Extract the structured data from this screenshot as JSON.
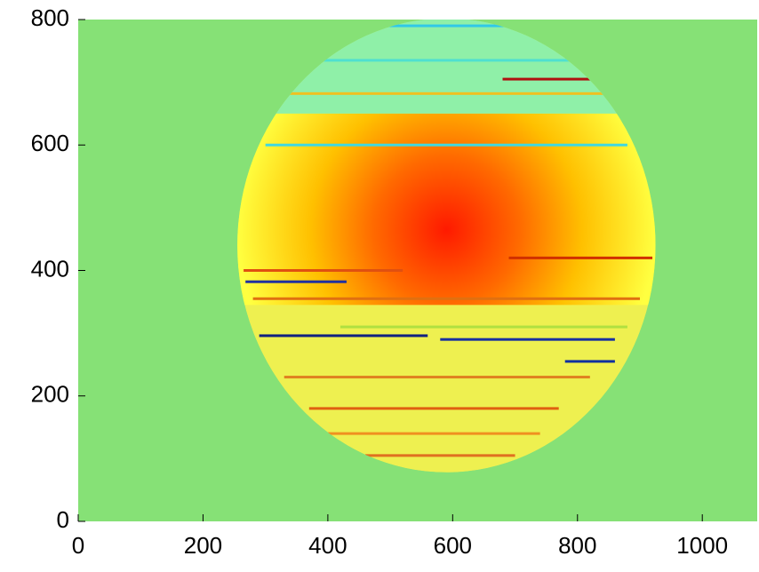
{
  "chart_data": {
    "type": "heatmap",
    "xlim": [
      0,
      1088
    ],
    "ylim": [
      0,
      800
    ],
    "xticks": [
      0,
      200,
      400,
      600,
      800,
      1000
    ],
    "yticks": [
      0,
      200,
      400,
      600,
      800
    ],
    "background": "#86e176",
    "disk": {
      "cx": 590,
      "cy": 440,
      "rx": 335,
      "ry": 362
    },
    "core": {
      "cx": 590,
      "cy": 465,
      "y_from": 345,
      "y_to": 650
    },
    "colors": {
      "center": "#ff1a00",
      "mid": "#ff6a00",
      "outer": "#ffc000",
      "edge": "#ffff40",
      "top": "#8ff0a8",
      "bottom": "#eef050"
    },
    "streaks": [
      {
        "y": 790,
        "x0": 440,
        "x1": 700,
        "color": "#30c8e8"
      },
      {
        "y": 735,
        "x0": 340,
        "x1": 800,
        "color": "#50e0d0"
      },
      {
        "y": 705,
        "x0": 680,
        "x1": 840,
        "color": "#b01010"
      },
      {
        "y": 682,
        "x0": 320,
        "x1": 860,
        "color": "#f0c020"
      },
      {
        "y": 600,
        "x0": 300,
        "x1": 880,
        "color": "#40d8e0"
      },
      {
        "y": 420,
        "x0": 690,
        "x1": 920,
        "color": "#d03000"
      },
      {
        "y": 400,
        "x0": 265,
        "x1": 520,
        "color": "#e05010"
      },
      {
        "y": 382,
        "x0": 268,
        "x1": 430,
        "color": "#2030a0"
      },
      {
        "y": 355,
        "x0": 280,
        "x1": 900,
        "color": "#e07010"
      },
      {
        "y": 310,
        "x0": 420,
        "x1": 880,
        "color": "#b0e040"
      },
      {
        "y": 296,
        "x0": 290,
        "x1": 560,
        "color": "#102080"
      },
      {
        "y": 290,
        "x0": 580,
        "x1": 860,
        "color": "#1830a0"
      },
      {
        "y": 255,
        "x0": 780,
        "x1": 860,
        "color": "#1030a0"
      },
      {
        "y": 230,
        "x0": 330,
        "x1": 820,
        "color": "#e08020"
      },
      {
        "y": 180,
        "x0": 370,
        "x1": 770,
        "color": "#e06010"
      },
      {
        "y": 140,
        "x0": 400,
        "x1": 740,
        "color": "#f09020"
      },
      {
        "y": 105,
        "x0": 460,
        "x1": 700,
        "color": "#e07020"
      }
    ]
  }
}
